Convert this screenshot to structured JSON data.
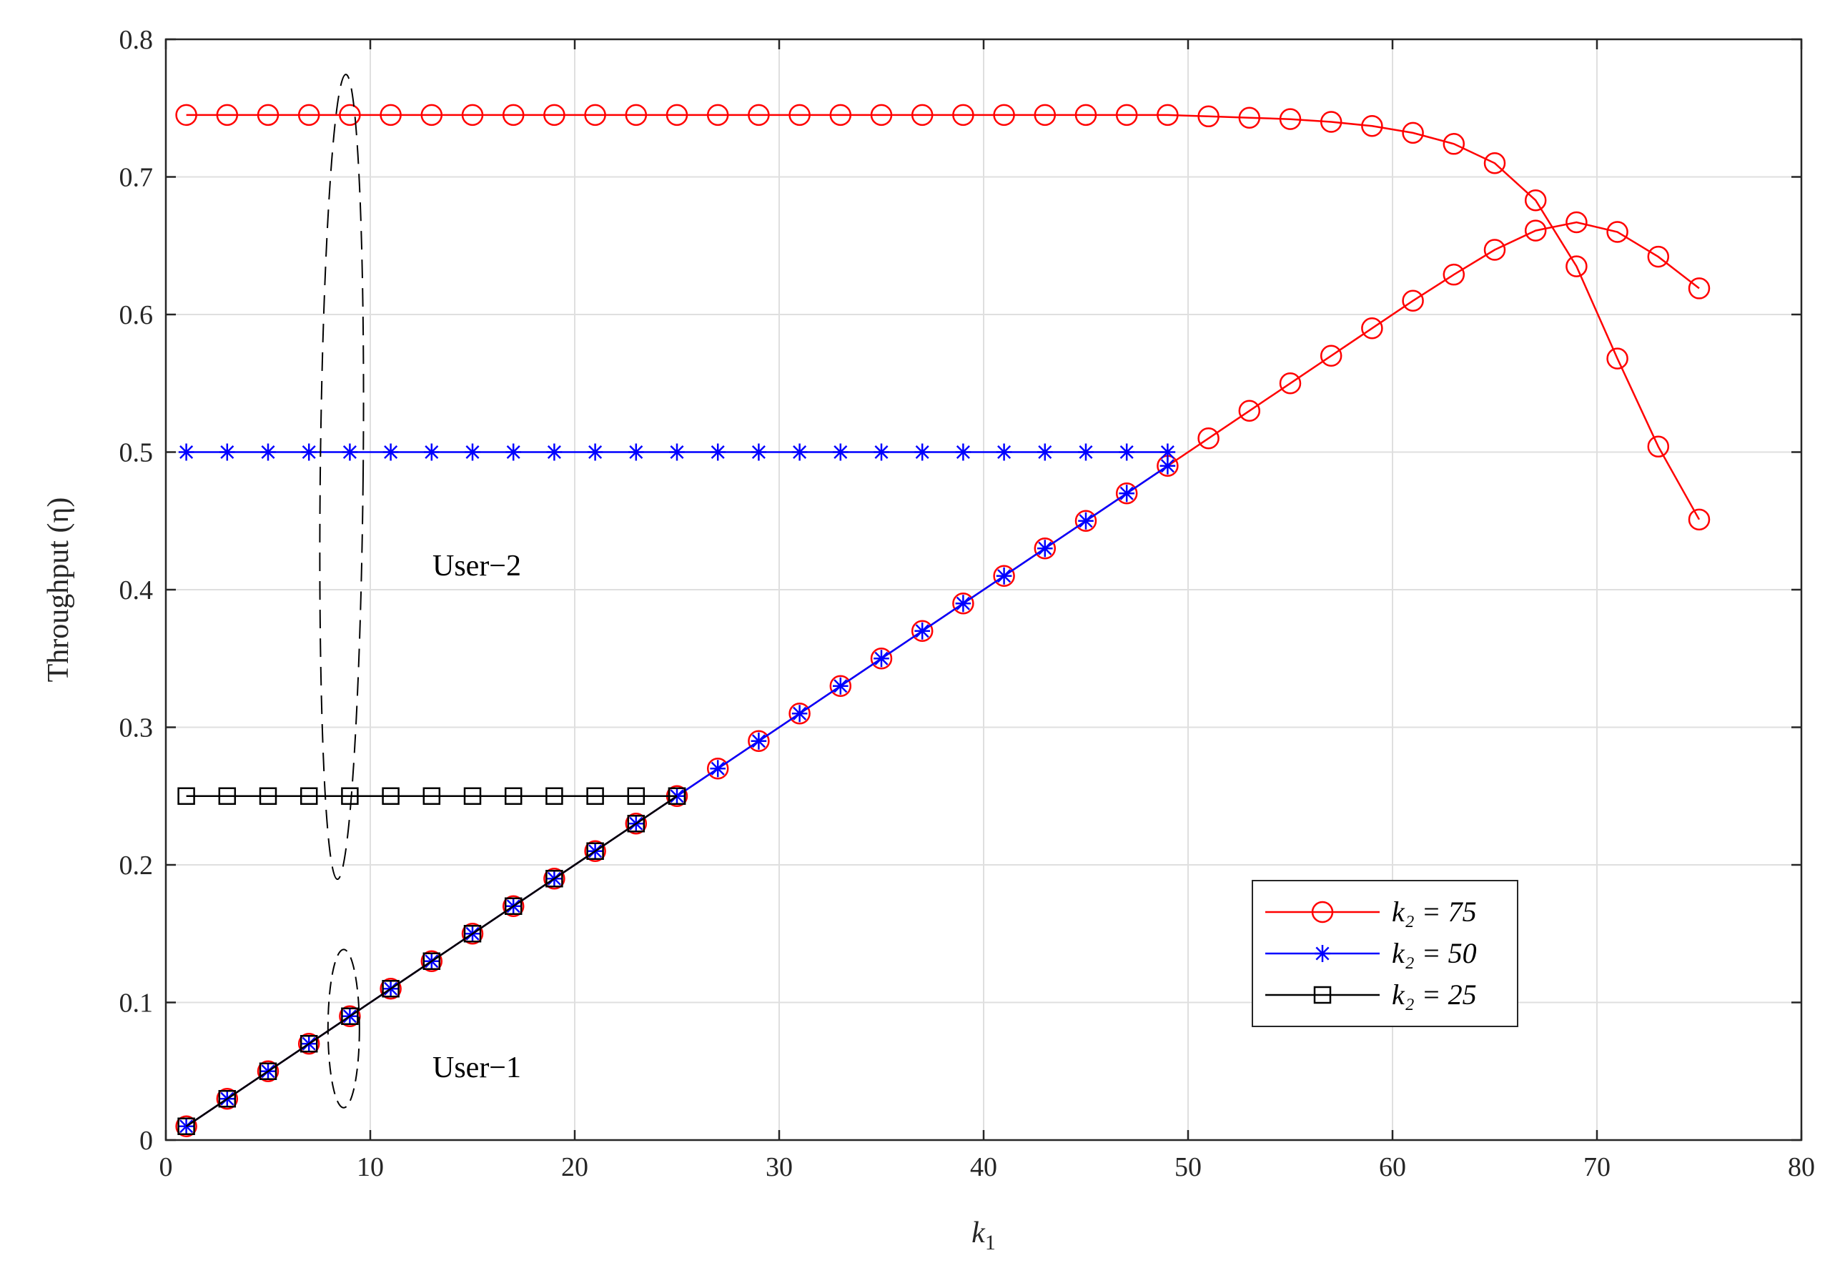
{
  "chart_data": {
    "type": "line",
    "xlabel_main": "k",
    "xlabel_sub": "1",
    "ylabel": "Throughput (η)",
    "xlim": [
      0,
      80
    ],
    "ylim": [
      0,
      0.8
    ],
    "xticks": [
      "0",
      "10",
      "20",
      "30",
      "40",
      "50",
      "60",
      "70",
      "80"
    ],
    "yticks": [
      "0",
      "0.1",
      "0.2",
      "0.3",
      "0.4",
      "0.5",
      "0.6",
      "0.7",
      "0.8"
    ],
    "grid": true,
    "legend_position": "bottom-right",
    "annotations": [
      "User−2",
      "User−1"
    ],
    "series": [
      {
        "name": "k₂ = 75",
        "color": "#ff0000",
        "marker": "circle",
        "group": "User-2",
        "x": [
          1,
          3,
          5,
          7,
          9,
          11,
          13,
          15,
          17,
          19,
          21,
          23,
          25,
          27,
          29,
          31,
          33,
          35,
          37,
          39,
          41,
          43,
          45,
          47,
          49,
          51,
          53,
          55,
          57,
          59,
          61,
          63,
          65,
          67,
          69,
          71,
          73,
          75
        ],
        "y": [
          0.745,
          0.745,
          0.745,
          0.745,
          0.745,
          0.745,
          0.745,
          0.745,
          0.745,
          0.745,
          0.745,
          0.745,
          0.745,
          0.745,
          0.745,
          0.745,
          0.745,
          0.745,
          0.745,
          0.745,
          0.745,
          0.745,
          0.745,
          0.745,
          0.745,
          0.744,
          0.743,
          0.742,
          0.74,
          0.737,
          0.732,
          0.724,
          0.71,
          0.683,
          0.635,
          0.568,
          0.504,
          0.451
        ]
      },
      {
        "name": "k₂ = 75",
        "color": "#ff0000",
        "marker": "circle",
        "group": "User-1",
        "x": [
          1,
          3,
          5,
          7,
          9,
          11,
          13,
          15,
          17,
          19,
          21,
          23,
          25,
          27,
          29,
          31,
          33,
          35,
          37,
          39,
          41,
          43,
          45,
          47,
          49,
          51,
          53,
          55,
          57,
          59,
          61,
          63,
          65,
          67,
          69,
          71,
          73,
          75
        ],
        "y": [
          0.01,
          0.03,
          0.05,
          0.07,
          0.09,
          0.11,
          0.13,
          0.15,
          0.17,
          0.19,
          0.21,
          0.23,
          0.25,
          0.27,
          0.29,
          0.31,
          0.33,
          0.35,
          0.37,
          0.39,
          0.41,
          0.43,
          0.45,
          0.47,
          0.49,
          0.51,
          0.53,
          0.55,
          0.57,
          0.59,
          0.61,
          0.629,
          0.647,
          0.661,
          0.667,
          0.66,
          0.642,
          0.619
        ]
      },
      {
        "name": "k₂ = 50",
        "color": "#0000ff",
        "marker": "asterisk",
        "group": "User-2",
        "x": [
          1,
          3,
          5,
          7,
          9,
          11,
          13,
          15,
          17,
          19,
          21,
          23,
          25,
          27,
          29,
          31,
          33,
          35,
          37,
          39,
          41,
          43,
          45,
          47,
          49
        ],
        "y": [
          0.5,
          0.5,
          0.5,
          0.5,
          0.5,
          0.5,
          0.5,
          0.5,
          0.5,
          0.5,
          0.5,
          0.5,
          0.5,
          0.5,
          0.5,
          0.5,
          0.5,
          0.5,
          0.5,
          0.5,
          0.5,
          0.5,
          0.5,
          0.5,
          0.5
        ]
      },
      {
        "name": "k₂ = 50",
        "color": "#0000ff",
        "marker": "asterisk",
        "group": "User-1",
        "x": [
          1,
          3,
          5,
          7,
          9,
          11,
          13,
          15,
          17,
          19,
          21,
          23,
          25,
          27,
          29,
          31,
          33,
          35,
          37,
          39,
          41,
          43,
          45,
          47,
          49
        ],
        "y": [
          0.01,
          0.03,
          0.05,
          0.07,
          0.09,
          0.11,
          0.13,
          0.15,
          0.17,
          0.19,
          0.21,
          0.23,
          0.25,
          0.27,
          0.29,
          0.31,
          0.33,
          0.35,
          0.37,
          0.39,
          0.41,
          0.43,
          0.45,
          0.47,
          0.49
        ]
      },
      {
        "name": "k₂ = 25",
        "color": "#000000",
        "marker": "square",
        "group": "User-2",
        "x": [
          1,
          3,
          5,
          7,
          9,
          11,
          13,
          15,
          17,
          19,
          21,
          23,
          25
        ],
        "y": [
          0.25,
          0.25,
          0.25,
          0.25,
          0.25,
          0.25,
          0.25,
          0.25,
          0.25,
          0.25,
          0.25,
          0.25,
          0.25
        ]
      },
      {
        "name": "k₂ = 25",
        "color": "#000000",
        "marker": "square",
        "group": "User-1",
        "x": [
          1,
          3,
          5,
          7,
          9,
          11,
          13,
          15,
          17,
          19,
          21,
          23,
          25
        ],
        "y": [
          0.01,
          0.03,
          0.05,
          0.07,
          0.09,
          0.11,
          0.13,
          0.15,
          0.17,
          0.19,
          0.21,
          0.23,
          0.25
        ]
      }
    ],
    "legend": [
      {
        "label": "k₂ = 75",
        "color": "#ff0000",
        "marker": "circle"
      },
      {
        "label": "k₂ = 50",
        "color": "#0000ff",
        "marker": "asterisk"
      },
      {
        "label": "k₂ = 25",
        "color": "#000000",
        "marker": "square"
      }
    ]
  }
}
